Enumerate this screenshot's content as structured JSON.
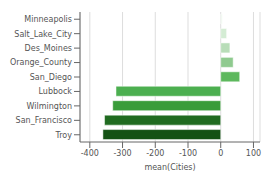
{
  "chart_data": {
    "type": "bar",
    "orientation": "horizontal",
    "categories": [
      "Minneapolis",
      "Salt_Lake_City",
      "Des_Moines",
      "Orange_County",
      "San_Diego",
      "Lubbock",
      "Wilmington",
      "San_Francisco",
      "Troy"
    ],
    "values": [
      5,
      18,
      28,
      38,
      58,
      -320,
      -330,
      -355,
      -360
    ],
    "colors": [
      "#f0f9f0",
      "#d4ecd4",
      "#b8ddb8",
      "#8fca8f",
      "#5db85d",
      "#4caf50",
      "#3a9c3a",
      "#206b20",
      "#145214"
    ],
    "xlabel": "mean(Cities)",
    "xlim": [
      -430,
      120
    ],
    "xticks": [
      -400,
      -300,
      -200,
      -100,
      0,
      100
    ],
    "grid": true
  }
}
